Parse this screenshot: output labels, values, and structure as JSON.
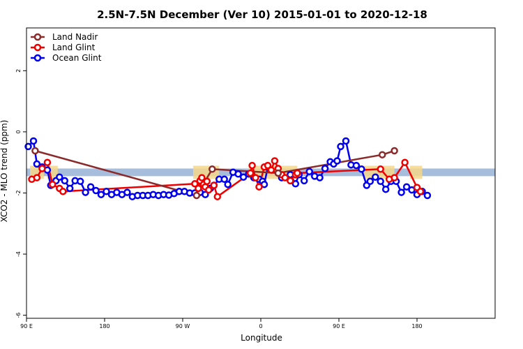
{
  "chart_data": {
    "type": "line",
    "title": "2.5N-7.5N December (Ver 10)   2015-01-01 to 2020-12-18",
    "xlabel": "Longitude",
    "ylabel": "XCO2 - MLO trend (ppm)",
    "xlim": [
      -90,
      180
    ],
    "ylim": [
      -6.1,
      3.4
    ],
    "x_ticks": [
      {
        "value": -90,
        "label": "90 E"
      },
      {
        "value": -45,
        "label": "180"
      },
      {
        "value": 0,
        "label": "90 W"
      },
      {
        "value": 45,
        "label": "0"
      },
      {
        "value": 90,
        "label": "90 E"
      },
      {
        "value": 135,
        "label": "180"
      }
    ],
    "y_ticks": [
      {
        "value": 2,
        "label": "2"
      },
      {
        "value": 0,
        "label": "0"
      },
      {
        "value": -2,
        "label": "-2"
      },
      {
        "value": -4,
        "label": "-4"
      },
      {
        "value": -6,
        "label": "-6"
      }
    ],
    "band": {
      "y_min": -1.45,
      "y_max": -1.2,
      "color": "#a6bddb"
    },
    "uncertainty_fill_color": "#f5d78a",
    "legend": {
      "position": "top-left"
    },
    "series": [
      {
        "name": "Land Nadir",
        "color": "#8b2a2a",
        "points": [
          [
            -85,
            -0.62
          ],
          [
            8,
            -2.08
          ],
          [
            17,
            -1.22
          ],
          [
            55,
            -1.35
          ],
          [
            115,
            -0.75
          ],
          [
            122,
            -0.62
          ]
        ]
      },
      {
        "name": "Land Glint",
        "color": "#ee0000",
        "points": [
          [
            -87,
            -1.55
          ],
          [
            -84,
            -1.5
          ],
          [
            -81,
            -1.2
          ],
          [
            -78,
            -1.0
          ],
          [
            -75,
            -1.72
          ],
          [
            -71,
            -1.85
          ],
          [
            -69,
            -1.95
          ],
          [
            7,
            -1.7
          ],
          [
            9,
            -1.85
          ],
          [
            10,
            -1.6
          ],
          [
            11,
            -1.5
          ],
          [
            12,
            -1.72
          ],
          [
            13,
            -1.8
          ],
          [
            14,
            -1.62
          ],
          [
            15,
            -1.9
          ],
          [
            18,
            -1.75
          ],
          [
            20,
            -2.12
          ],
          [
            39,
            -1.35
          ],
          [
            40,
            -1.1
          ],
          [
            42,
            -1.5
          ],
          [
            44,
            -1.8
          ],
          [
            47,
            -1.15
          ],
          [
            49,
            -1.1
          ],
          [
            51,
            -1.25
          ],
          [
            53,
            -0.95
          ],
          [
            55,
            -1.2
          ],
          [
            57,
            -1.4
          ],
          [
            59,
            -1.5
          ],
          [
            62,
            -1.6
          ],
          [
            65,
            -1.4
          ],
          [
            66,
            -1.35
          ],
          [
            114,
            -1.22
          ],
          [
            119,
            -1.55
          ],
          [
            122,
            -1.5
          ],
          [
            128,
            -1.0
          ],
          [
            135,
            -1.82
          ],
          [
            137,
            -1.95
          ]
        ]
      },
      {
        "name": "Ocean Glint",
        "color": "#0000ee",
        "points": [
          [
            -89,
            -0.48
          ],
          [
            -86,
            -0.3
          ],
          [
            -84,
            -1.05
          ],
          [
            -81,
            -1.15
          ],
          [
            -78,
            -1.25
          ],
          [
            -76,
            -1.75
          ],
          [
            -73,
            -1.6
          ],
          [
            -71,
            -1.48
          ],
          [
            -68,
            -1.6
          ],
          [
            -65,
            -1.85
          ],
          [
            -62,
            -1.6
          ],
          [
            -59,
            -1.62
          ],
          [
            -56,
            -1.98
          ],
          [
            -53,
            -1.8
          ],
          [
            -50,
            -1.92
          ],
          [
            -47,
            -2.05
          ],
          [
            -44,
            -1.95
          ],
          [
            -41,
            -2.05
          ],
          [
            -38,
            -1.98
          ],
          [
            -35,
            -2.05
          ],
          [
            -32,
            -1.98
          ],
          [
            -29,
            -2.12
          ],
          [
            -26,
            -2.08
          ],
          [
            -23,
            -2.08
          ],
          [
            -20,
            -2.08
          ],
          [
            -17,
            -2.05
          ],
          [
            -14,
            -2.08
          ],
          [
            -11,
            -2.05
          ],
          [
            -8,
            -2.07
          ],
          [
            -5,
            -2.02
          ],
          [
            -2,
            -1.95
          ],
          [
            1,
            -1.95
          ],
          [
            4,
            -2.0
          ],
          [
            7,
            -2.0
          ],
          [
            10,
            -1.98
          ],
          [
            13,
            -2.05
          ],
          [
            16,
            -1.85
          ],
          [
            18,
            -1.75
          ],
          [
            21,
            -1.55
          ],
          [
            24,
            -1.55
          ],
          [
            26,
            -1.72
          ],
          [
            29,
            -1.32
          ],
          [
            32,
            -1.38
          ],
          [
            35,
            -1.48
          ],
          [
            38,
            -1.38
          ],
          [
            41,
            -1.5
          ],
          [
            44,
            -1.55
          ],
          [
            46,
            -1.62
          ],
          [
            47,
            -1.72
          ],
          [
            49,
            -1.15
          ],
          [
            57,
            -1.5
          ],
          [
            62,
            -1.4
          ],
          [
            65,
            -1.7
          ],
          [
            67,
            -1.4
          ],
          [
            70,
            -1.6
          ],
          [
            73,
            -1.3
          ],
          [
            76,
            -1.45
          ],
          [
            79,
            -1.5
          ],
          [
            82,
            -1.2
          ],
          [
            85,
            -0.98
          ],
          [
            87,
            -1.05
          ],
          [
            89,
            -0.95
          ],
          [
            91,
            -0.48
          ],
          [
            94,
            -0.3
          ],
          [
            97,
            -1.08
          ],
          [
            100,
            -1.1
          ],
          [
            103,
            -1.22
          ],
          [
            106,
            -1.75
          ],
          [
            108,
            -1.62
          ],
          [
            111,
            -1.48
          ],
          [
            114,
            -1.62
          ],
          [
            117,
            -1.88
          ],
          [
            120,
            -1.62
          ],
          [
            123,
            -1.62
          ],
          [
            126,
            -1.98
          ],
          [
            129,
            -1.8
          ],
          [
            132,
            -1.9
          ],
          [
            135,
            -2.05
          ],
          [
            138,
            -1.95
          ],
          [
            141,
            -2.08
          ]
        ]
      }
    ]
  }
}
